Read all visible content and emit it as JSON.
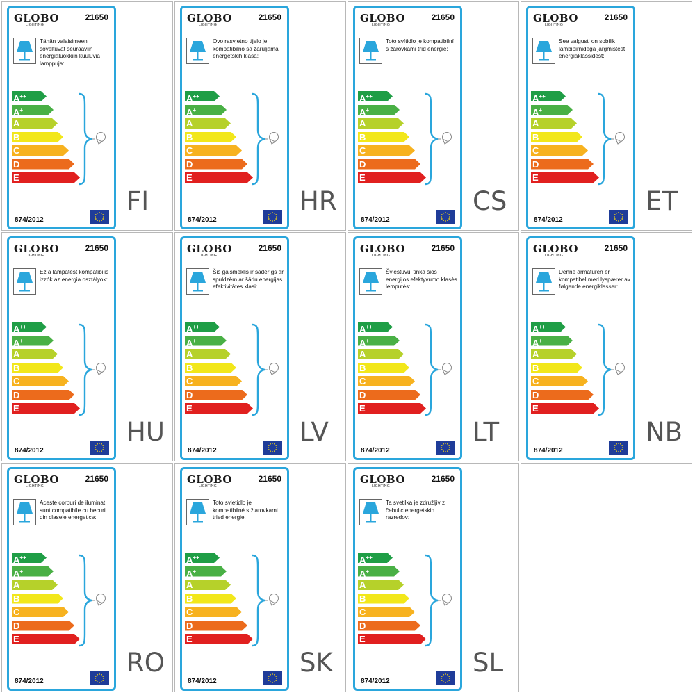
{
  "brand": "GLOBO",
  "brand_sub": "LIGHTING",
  "model": "21650",
  "regulation": "874/2012",
  "energy_classes": [
    {
      "base": "A",
      "sup": "++",
      "color": "#1f9e46"
    },
    {
      "base": "A",
      "sup": "+",
      "color": "#49b045"
    },
    {
      "base": "A",
      "sup": "",
      "color": "#b6d12a"
    },
    {
      "base": "B",
      "sup": "",
      "color": "#f2e71a"
    },
    {
      "base": "C",
      "sup": "",
      "color": "#f7b21f"
    },
    {
      "base": "D",
      "sup": "",
      "color": "#ec6b1c"
    },
    {
      "base": "E",
      "sup": "",
      "color": "#e1201f"
    }
  ],
  "colors": {
    "frame": "#2aa6dc",
    "lamp": "#2aa6dc",
    "eu_flag": "#1f3c99",
    "eu_stars": "#f5d311",
    "language_code": "#555555"
  },
  "icons": [
    "table-lamp-icon",
    "light-bulb-icon",
    "eu-flag-icon"
  ],
  "labels": [
    {
      "lang": "FI",
      "text": "Tähän valaisimeen soveltuvat seuraaviin energialuokkiin kuuluvia lamppuja:"
    },
    {
      "lang": "HR",
      "text": "Ovo rasvjetno tijelo je kompatibilno sa žaruljama energetskih klasa:"
    },
    {
      "lang": "CS",
      "text": "Toto svítidlo je kompatibilní s žárovkami tříd energie:"
    },
    {
      "lang": "ET",
      "text": "See valgusti on sobilik lambipirnidega järgmistest energiaklassidest:"
    },
    {
      "lang": "HU",
      "text": "Ez a lámpatest kompatibilis izzók az energia osztályok:"
    },
    {
      "lang": "LV",
      "text": "Šis gaismeklis ir saderīgs ar spuldzēm ar šādu enerģijas efektivitātes klasi:"
    },
    {
      "lang": "LT",
      "text": "Šviestuvui tinka šios energijos efektyvumo klasės lemputės:"
    },
    {
      "lang": "NB",
      "text": "Denne armaturen er kompatibel med lyspærer av følgende energiklasser:"
    },
    {
      "lang": "RO",
      "text": "Aceste corpuri de iluminat sunt compatibile cu becuri din clasele energetice:"
    },
    {
      "lang": "SK",
      "text": "Toto svietidlo je kompatibilné s žiarovkami tried energie:"
    },
    {
      "lang": "SL",
      "text": "Ta svetilka je združljiv z čebulic energetskih razredov:"
    }
  ]
}
